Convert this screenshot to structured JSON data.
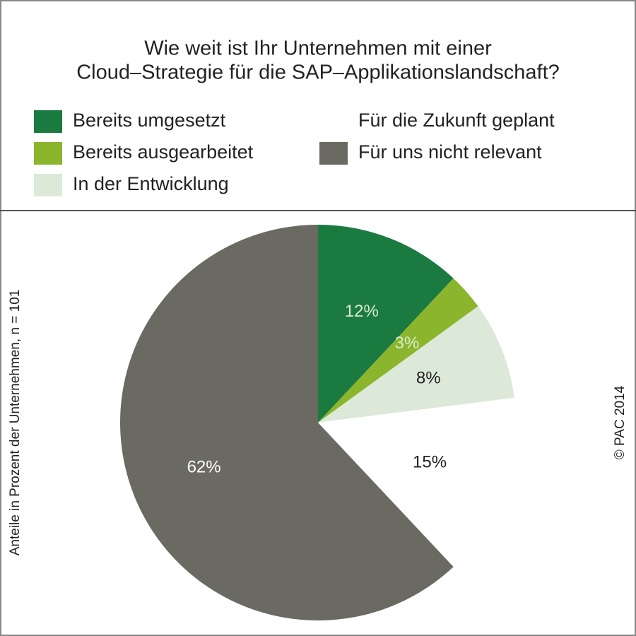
{
  "chart_data": {
    "type": "pie",
    "title": [
      "Wie weit ist Ihr Unternehmen mit einer",
      "Cloud–Strategie für die SAP–Applikationslandschaft?"
    ],
    "categories": [
      "Bereits umgesetzt",
      "Bereits ausgearbeitet",
      "In der Entwicklung",
      "Für die Zukunft geplant",
      "Für uns nicht relevant"
    ],
    "values": [
      12,
      3,
      8,
      15,
      62
    ],
    "value_labels": [
      "12%",
      "3%",
      "8%",
      "15%",
      "62%"
    ],
    "colors": [
      "#1b7a40",
      "#8bb52c",
      "#dde9d8",
      "#ffffff",
      "#6b6a62"
    ],
    "y_label": "Anteile in Prozent der Unternehmen, n = 101",
    "source": "© PAC 2014"
  }
}
